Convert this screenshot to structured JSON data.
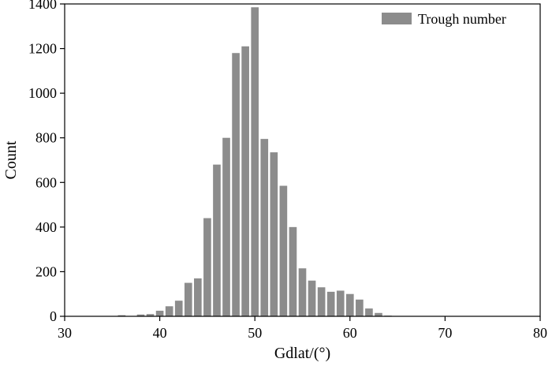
{
  "chart_data": {
    "type": "bar",
    "xlabel": "Gdlat/(°)",
    "ylabel": "Count",
    "xlim": [
      30,
      80
    ],
    "ylim": [
      0,
      1400
    ],
    "x_ticks": [
      30,
      40,
      50,
      60,
      70,
      80
    ],
    "y_ticks": [
      0,
      200,
      400,
      600,
      800,
      1000,
      1200,
      1400
    ],
    "legend": {
      "position": "top-right",
      "entries": [
        "Trough number"
      ]
    },
    "grid": false,
    "bar_color": "#8c8c8c",
    "series": [
      {
        "name": "Trough number",
        "x": [
          36,
          38,
          39,
          40,
          41,
          42,
          43,
          44,
          45,
          46,
          47,
          48,
          49,
          50,
          51,
          52,
          53,
          54,
          55,
          56,
          57,
          58,
          59,
          60,
          61,
          62,
          63,
          64
        ],
        "values": [
          5,
          8,
          10,
          25,
          45,
          70,
          150,
          170,
          440,
          680,
          800,
          1180,
          1210,
          1385,
          795,
          735,
          585,
          400,
          215,
          160,
          130,
          110,
          115,
          100,
          75,
          35,
          15,
          3
        ]
      }
    ]
  }
}
